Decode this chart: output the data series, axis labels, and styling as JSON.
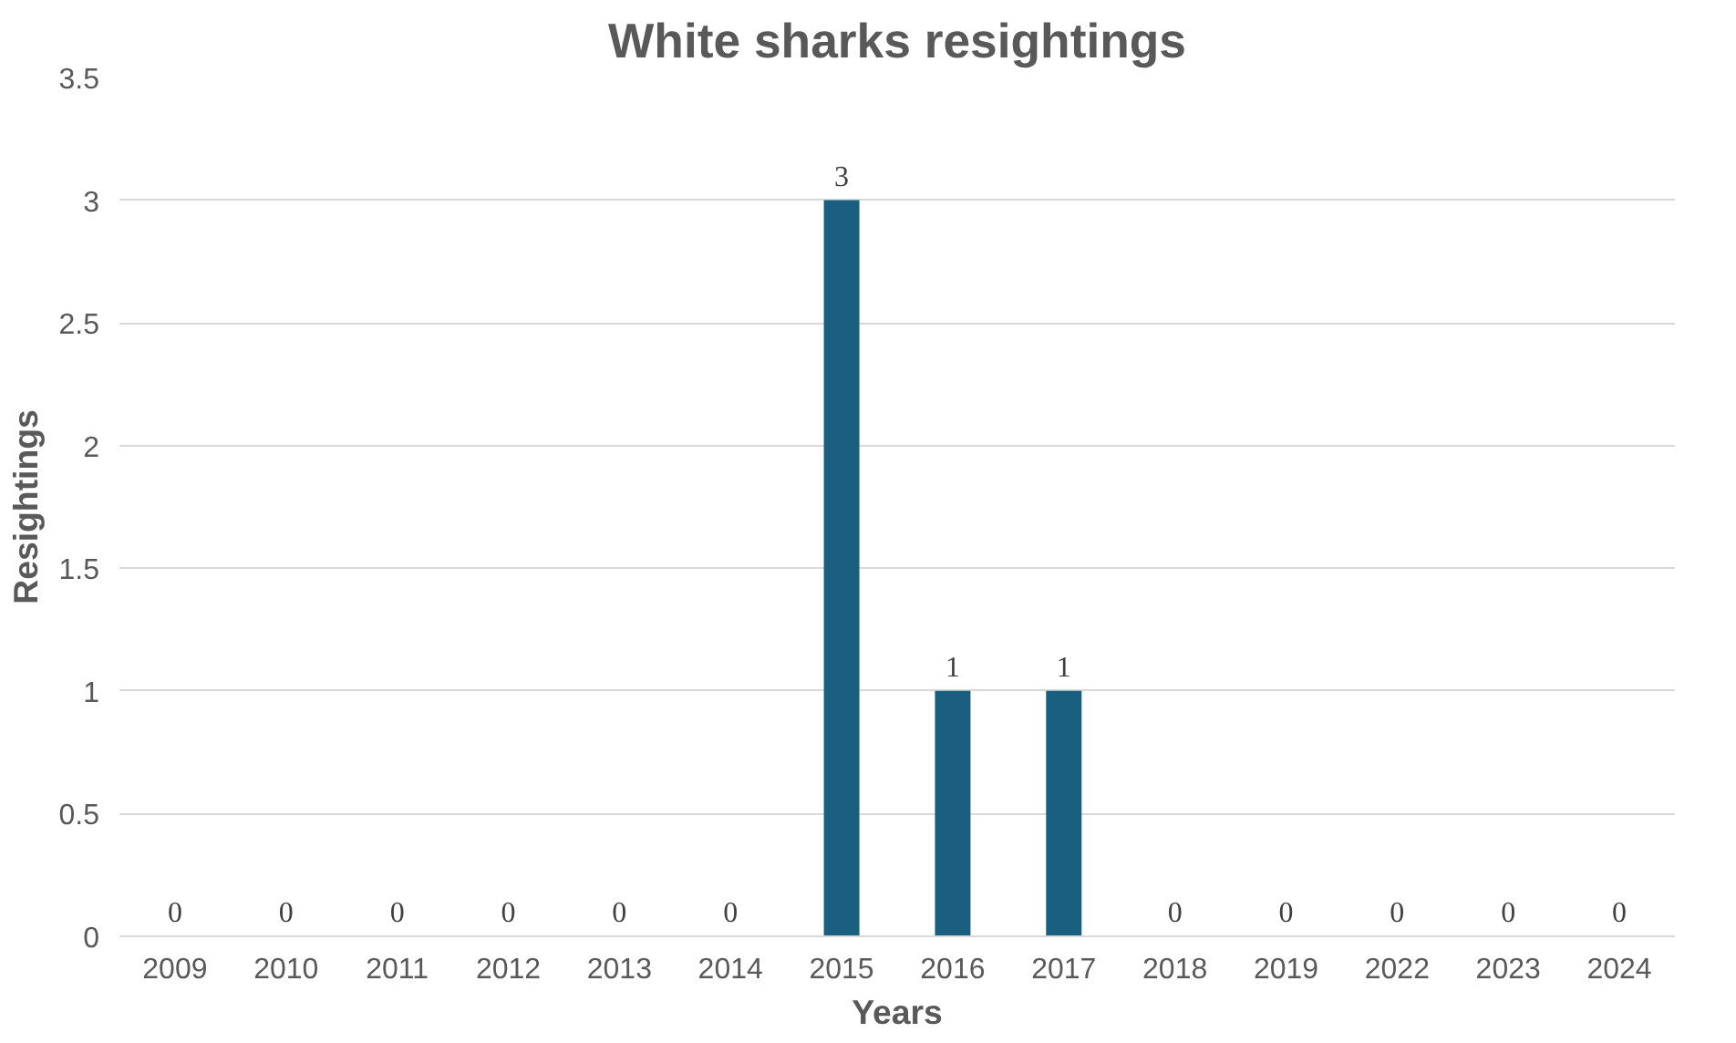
{
  "chart_data": {
    "type": "bar",
    "title": "White sharks resightings",
    "xlabel": "Years",
    "ylabel": "Resightings",
    "categories": [
      "2009",
      "2010",
      "2011",
      "2012",
      "2013",
      "2014",
      "2015",
      "2016",
      "2017",
      "2018",
      "2019",
      "2022",
      "2023",
      "2024"
    ],
    "values": [
      0,
      0,
      0,
      0,
      0,
      0,
      3,
      1,
      1,
      0,
      0,
      0,
      0,
      0
    ],
    "color": "#1a5f80",
    "ylim": [
      0,
      3.5
    ],
    "yticks": [
      0,
      0.5,
      1,
      1.5,
      2,
      2.5,
      3,
      3.5
    ],
    "grid": "y",
    "data_labels": true
  }
}
